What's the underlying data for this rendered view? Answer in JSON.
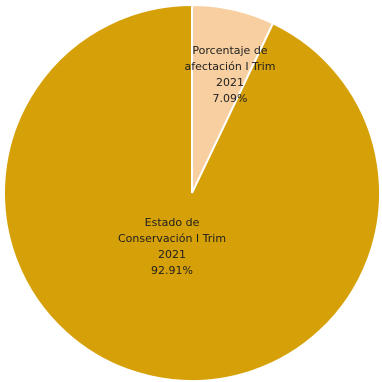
{
  "chart_data": {
    "type": "pie",
    "title": "",
    "legend": "none",
    "slices": [
      {
        "label_lines": [
          "Porcentaje de",
          "afectación I Trim",
          "2021",
          "7.09%"
        ],
        "value": 7.09,
        "color": "#F8CFA0"
      },
      {
        "label_lines": [
          "Estado de",
          "Conservación I Trim",
          "2021",
          "92.91%"
        ],
        "value": 92.91,
        "color": "#D6A008"
      }
    ]
  }
}
